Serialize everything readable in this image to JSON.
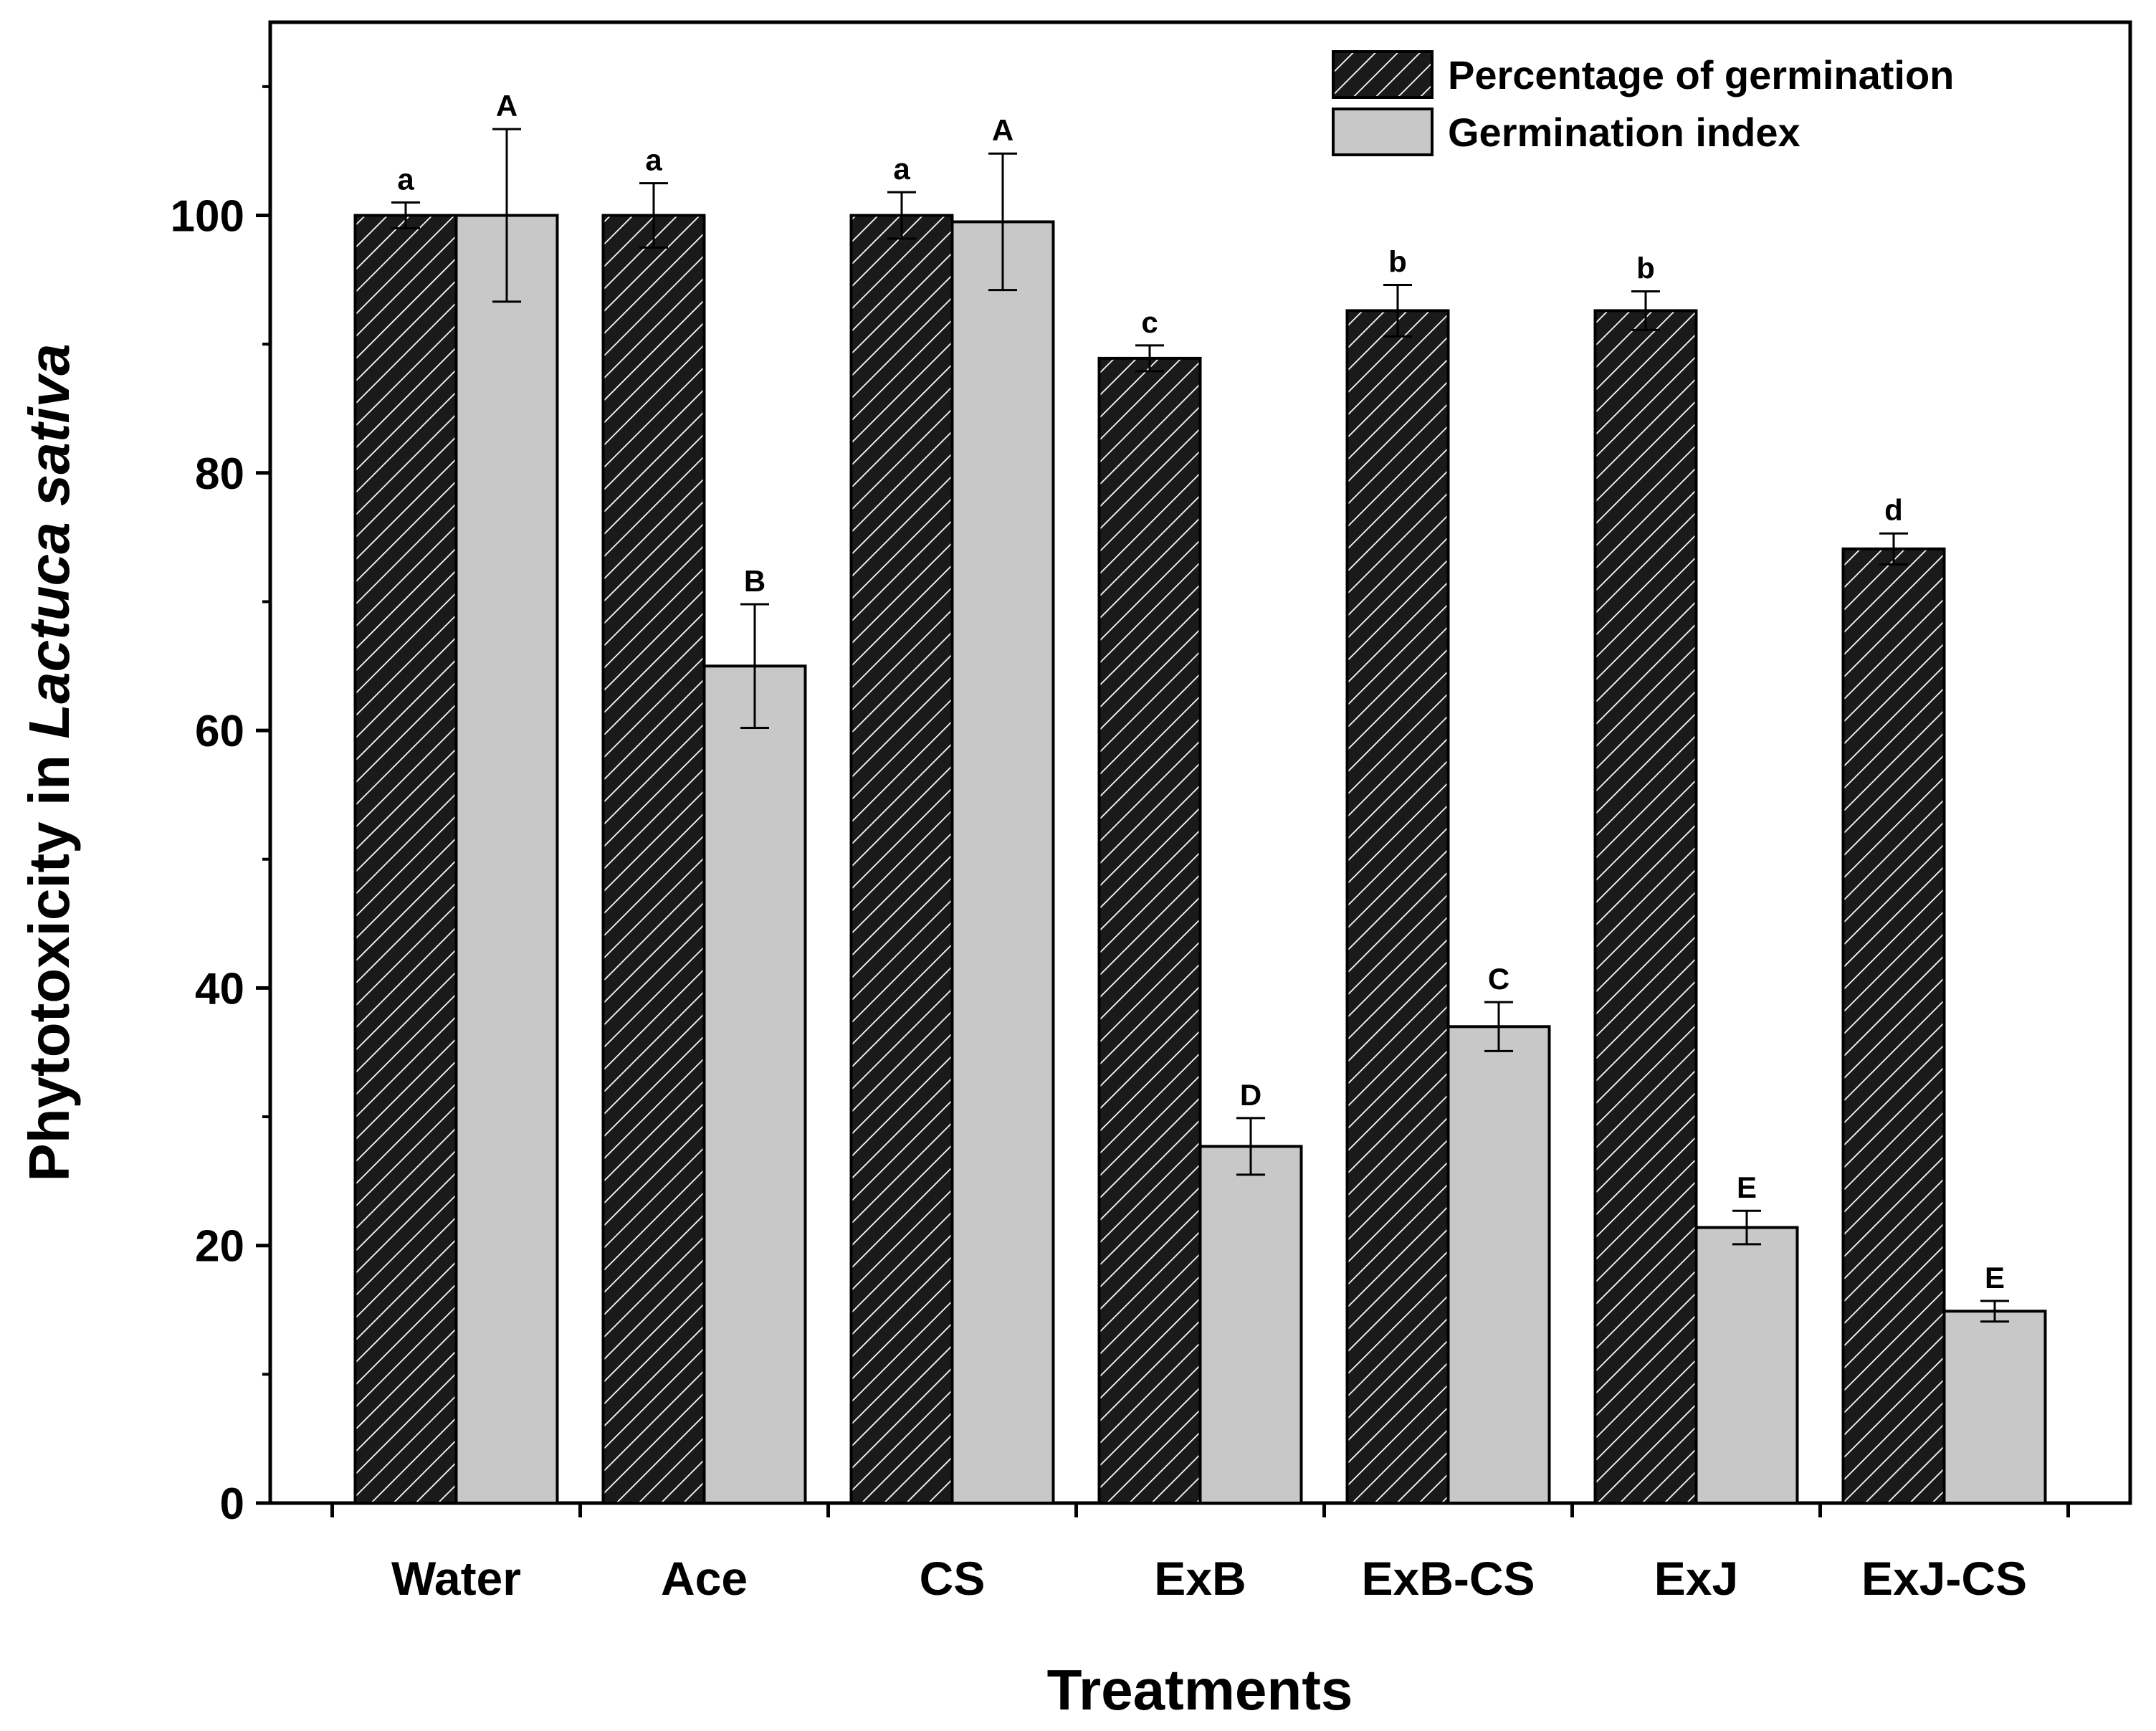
{
  "chart_data": {
    "type": "bar",
    "title": "",
    "xlabel": "Treatments",
    "ylabel_prefix": "Phytotoxicity in ",
    "ylabel_italic": "Lactuca sativa",
    "ylim": [
      0,
      115
    ],
    "yticks": [
      0,
      20,
      40,
      60,
      80,
      100
    ],
    "categories": [
      "Water",
      "Ace",
      "CS",
      "ExB",
      "ExB-CS",
      "ExJ",
      "ExJ-CS"
    ],
    "legend_position": "top-right",
    "series": [
      {
        "name": "Percentage of germination",
        "style": "hatched",
        "fill": "#1a1a1a",
        "values": [
          100,
          100,
          100,
          88.9,
          92.6,
          92.6,
          74.1
        ],
        "errors": [
          1.0,
          2.5,
          1.8,
          1.0,
          2.0,
          1.5,
          1.2
        ],
        "letters": [
          "a",
          "a",
          "a",
          "c",
          "b",
          "b",
          "d"
        ]
      },
      {
        "name": "Germination index",
        "style": "solid",
        "fill": "#c8c8c8",
        "values": [
          100,
          65,
          99.5,
          27.7,
          37,
          21.4,
          14.9
        ],
        "errors": [
          6.7,
          4.8,
          5.3,
          2.2,
          1.9,
          1.3,
          0.8
        ],
        "letters": [
          "A",
          "B",
          "A",
          "D",
          "C",
          "E",
          "E"
        ]
      }
    ]
  }
}
